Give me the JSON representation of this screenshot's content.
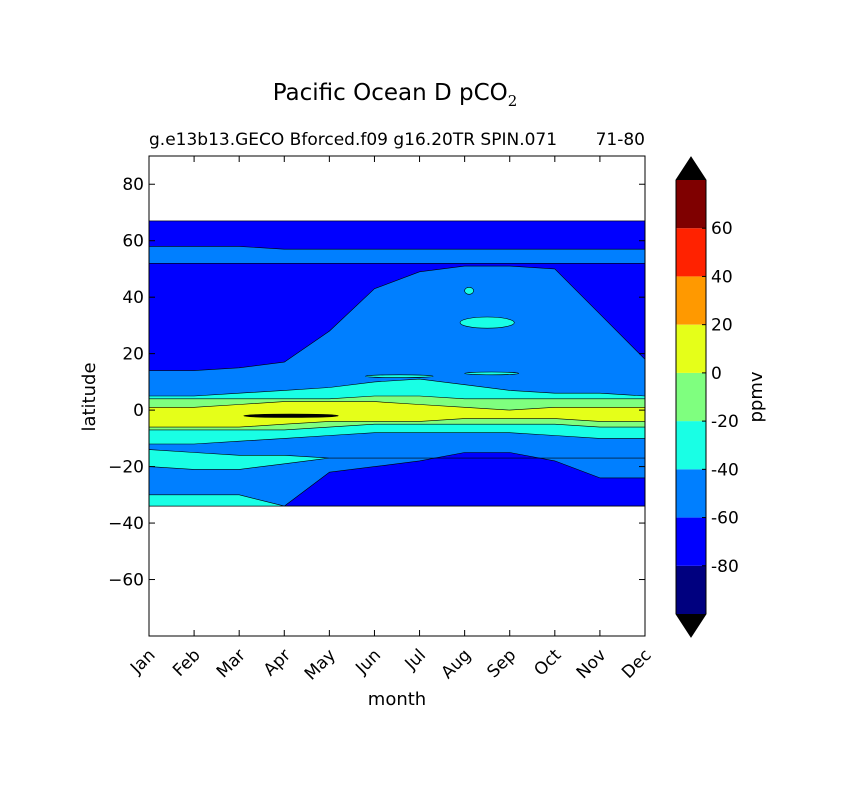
{
  "chart_data": {
    "type": "heatmap",
    "title": "Pacific Ocean D pCO",
    "title_subscript": "2",
    "subtitle": "g.e13b13.GECO Bforced.f09 g16.20TR SPIN.071",
    "subtitle_right": "71-80",
    "xlabel": "month",
    "ylabel": "latitude",
    "x_categories": [
      "Jan",
      "Feb",
      "Mar",
      "Apr",
      "May",
      "Jun",
      "Jul",
      "Aug",
      "Sep",
      "Oct",
      "Nov",
      "Dec"
    ],
    "ylim": [
      -80,
      90
    ],
    "y_ticks": [
      80,
      60,
      40,
      20,
      0,
      -20,
      -40,
      -60
    ],
    "y_tick_labels": [
      "80",
      "60",
      "40",
      "20",
      "0",
      "−20",
      "−40",
      "−60"
    ],
    "data_lat_range": [
      -34,
      67
    ],
    "colorbar": {
      "label": "ppmv",
      "levels": [
        -100,
        -80,
        -60,
        -40,
        -20,
        0,
        20,
        40,
        60,
        80
      ],
      "tick_values": [
        60,
        40,
        20,
        0,
        -20,
        -40,
        -60,
        -80
      ],
      "tick_labels": [
        "60",
        "40",
        "20",
        "0",
        "-20",
        "-40",
        "-60",
        "-80"
      ],
      "colors": [
        "#00007f",
        "#0000ff",
        "#007fff",
        "#19ffe5",
        "#7fff7f",
        "#e5ff19",
        "#ff9900",
        "#ff2200",
        "#7f0000"
      ],
      "extend_min_color": "#000000",
      "extend_max_color": "#000000"
    },
    "bands": [
      {
        "fill": 1,
        "top": [
          67,
          67,
          67,
          67,
          67,
          67,
          67,
          67,
          67,
          67,
          67,
          67
        ],
        "bottom": [
          -34,
          -34,
          -34,
          -34,
          -34,
          -34,
          -34,
          -34,
          -34,
          -34,
          -34,
          -34
        ]
      },
      {
        "fill": 2,
        "top": [
          58,
          58,
          58,
          57,
          57,
          57,
          57,
          57,
          57,
          57,
          57,
          57
        ],
        "bottom": [
          52,
          52,
          52,
          52,
          52,
          52,
          52,
          52,
          52,
          52,
          52,
          52
        ]
      },
      {
        "fill": 2,
        "top": [
          14,
          14,
          15,
          17,
          28,
          43,
          49,
          51,
          51,
          50,
          34,
          18
        ],
        "bottom": [
          -34,
          -34,
          -34,
          -34,
          -22,
          -20,
          -18,
          -15,
          -15,
          -18,
          -24,
          -24
        ]
      },
      {
        "fill": 3,
        "top": [
          5,
          5,
          6,
          7,
          8,
          10,
          11,
          9,
          7,
          6,
          6,
          5
        ],
        "bottom": [
          -12,
          -12,
          -11,
          -10,
          -9,
          -8,
          -8,
          -8,
          -8,
          -9,
          -10,
          -10
        ]
      },
      {
        "fill": 3,
        "top": [
          -14,
          -15,
          -16,
          -16,
          -17,
          -17,
          -17,
          -17,
          -17,
          -17,
          -17,
          -17
        ],
        "bottom": [
          -20,
          -21,
          -21,
          -19,
          -17,
          -17,
          -17,
          -17,
          -17,
          -17,
          -17,
          -17
        ]
      },
      {
        "fill": 3,
        "top": [
          -30,
          -30,
          -30,
          -34,
          -34,
          -34,
          -34,
          -34,
          -34,
          -34,
          -34,
          -34
        ],
        "bottom": [
          -34,
          -34,
          -34,
          -34,
          -34,
          -34,
          -34,
          -34,
          -34,
          -34,
          -34,
          -34
        ]
      },
      {
        "fill": 4,
        "top": [
          4,
          4,
          4,
          4,
          4,
          5,
          5,
          4,
          4,
          4,
          4,
          4
        ],
        "bottom": [
          -7,
          -7,
          -7,
          -7,
          -6,
          -5,
          -5,
          -5,
          -5,
          -5,
          -6,
          -6
        ]
      },
      {
        "fill": 5,
        "top": [
          1,
          1,
          2,
          3,
          3,
          3,
          2,
          1,
          0,
          1,
          1,
          1
        ],
        "bottom": [
          -6,
          -6,
          -6,
          -5,
          -4,
          -4,
          -4,
          -3,
          -3,
          -3,
          -4,
          -4
        ]
      }
    ],
    "patches": [
      {
        "fill": 3,
        "lat": [
          29,
          33
        ],
        "months": [
          6.9,
          8.1
        ]
      },
      {
        "fill": 3,
        "lat": [
          41,
          43.5
        ],
        "months": [
          7.0,
          7.2
        ]
      },
      {
        "fill": 3,
        "lat": [
          12.5,
          13.5
        ],
        "months": [
          7.0,
          8.2
        ]
      },
      {
        "fill": 3,
        "lat": [
          11.5,
          12.5
        ],
        "months": [
          4.8,
          6.3
        ]
      },
      {
        "fill": 9,
        "lat": [
          -2.6,
          -1.4
        ],
        "months": [
          2.1,
          4.2
        ]
      }
    ]
  }
}
